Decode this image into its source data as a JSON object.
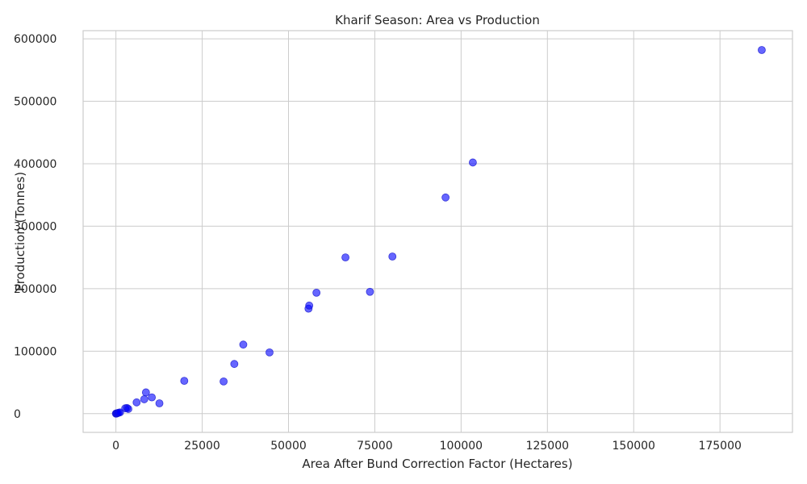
{
  "chart_data": {
    "type": "scatter",
    "title": "Kharif Season: Area vs Production",
    "xlabel": "Area After Bund Correction Factor (Hectares)",
    "ylabel": "Production (Tonnes)",
    "xlim": [
      -9500,
      196000
    ],
    "ylim": [
      -30000,
      613000
    ],
    "xticks": [
      0,
      25000,
      50000,
      75000,
      100000,
      125000,
      150000,
      175000
    ],
    "yticks": [
      0,
      100000,
      200000,
      300000,
      400000,
      500000,
      600000
    ],
    "xtick_labels": [
      "0",
      "25000",
      "50000",
      "75000",
      "100000",
      "125000",
      "150000",
      "175000"
    ],
    "ytick_labels": [
      "0",
      "100000",
      "200000",
      "300000",
      "400000",
      "500000",
      "600000"
    ],
    "grid": true,
    "point_color": "#0000ff",
    "point_alpha": 0.6,
    "points": [
      {
        "x": 0,
        "y": 0
      },
      {
        "x": 100,
        "y": 200
      },
      {
        "x": 200,
        "y": 500
      },
      {
        "x": 300,
        "y": 300
      },
      {
        "x": 500,
        "y": 800
      },
      {
        "x": 800,
        "y": 1500
      },
      {
        "x": 1200,
        "y": 2000
      },
      {
        "x": 2700,
        "y": 8500
      },
      {
        "x": 3200,
        "y": 9000
      },
      {
        "x": 3600,
        "y": 7500
      },
      {
        "x": 6000,
        "y": 18000
      },
      {
        "x": 8200,
        "y": 23000
      },
      {
        "x": 8700,
        "y": 34000
      },
      {
        "x": 10400,
        "y": 26000
      },
      {
        "x": 12600,
        "y": 16500
      },
      {
        "x": 19800,
        "y": 52500
      },
      {
        "x": 31200,
        "y": 51500
      },
      {
        "x": 34300,
        "y": 79500
      },
      {
        "x": 36900,
        "y": 110500
      },
      {
        "x": 44500,
        "y": 98000
      },
      {
        "x": 55800,
        "y": 168000
      },
      {
        "x": 56000,
        "y": 173000
      },
      {
        "x": 58100,
        "y": 193500
      },
      {
        "x": 66500,
        "y": 250000
      },
      {
        "x": 73600,
        "y": 195000
      },
      {
        "x": 80100,
        "y": 251500
      },
      {
        "x": 95500,
        "y": 346000
      },
      {
        "x": 103400,
        "y": 402000
      },
      {
        "x": 187100,
        "y": 582000
      }
    ]
  }
}
